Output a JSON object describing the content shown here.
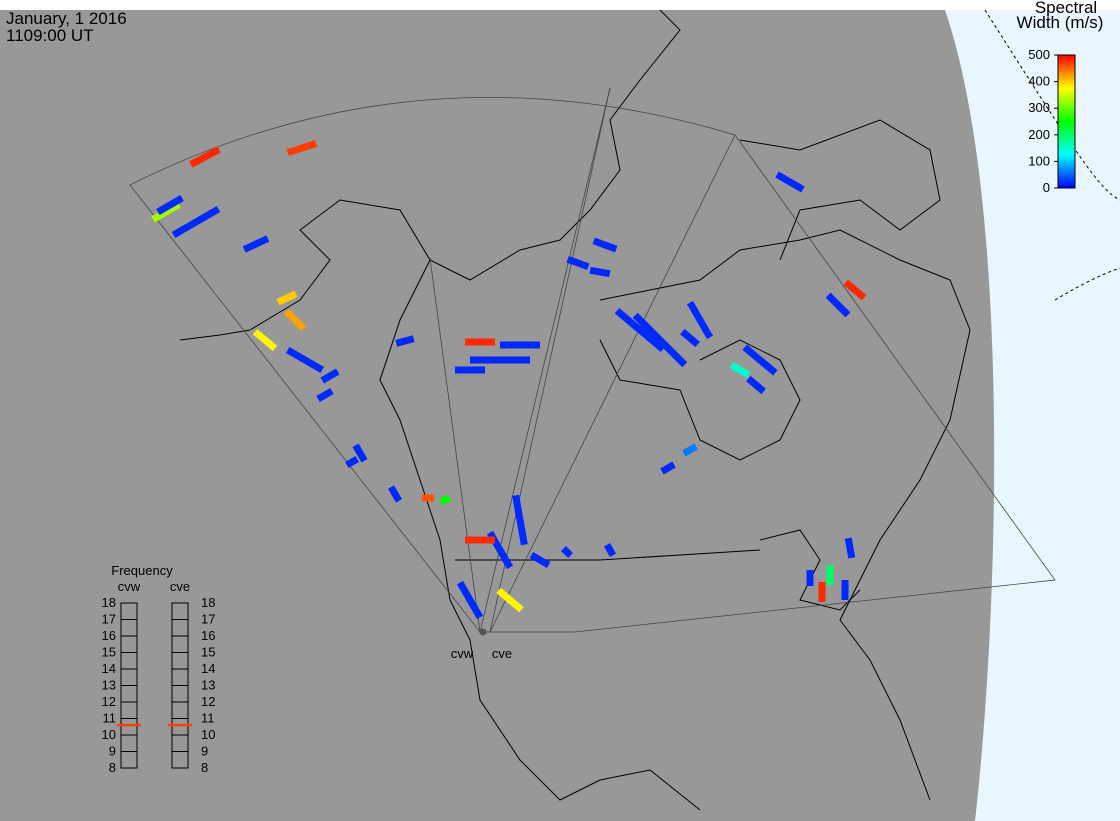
{
  "header": {
    "date": "January, 1 2016",
    "time": "1109:00 UT"
  },
  "colorbar": {
    "title": [
      "Spectral",
      "Width (m/s)"
    ],
    "range": [
      0,
      500
    ],
    "ticks": [
      0,
      100,
      200,
      300,
      400,
      500
    ]
  },
  "frequency": {
    "title": "Frequency",
    "range": [
      8,
      18
    ],
    "ticks": [
      8,
      9,
      10,
      11,
      12,
      13,
      14,
      15,
      16,
      17,
      18
    ],
    "radars": [
      {
        "name": "cvw",
        "value": 10.6
      },
      {
        "name": "cve",
        "value": 10.6
      }
    ]
  },
  "sites": [
    "cvw",
    "cve"
  ],
  "cells": [
    480,
    470,
    20,
    20,
    400,
    330,
    20,
    20,
    20,
    380,
    420,
    20,
    20,
    20,
    20,
    20,
    20,
    480,
    20,
    20,
    20,
    20,
    20,
    20,
    20,
    20,
    20,
    150,
    20,
    20,
    20,
    480,
    20,
    60,
    20,
    20,
    20,
    480,
    20,
    380,
    20,
    20,
    250,
    20,
    460,
    200,
    20,
    480,
    20,
    20
  ]
}
